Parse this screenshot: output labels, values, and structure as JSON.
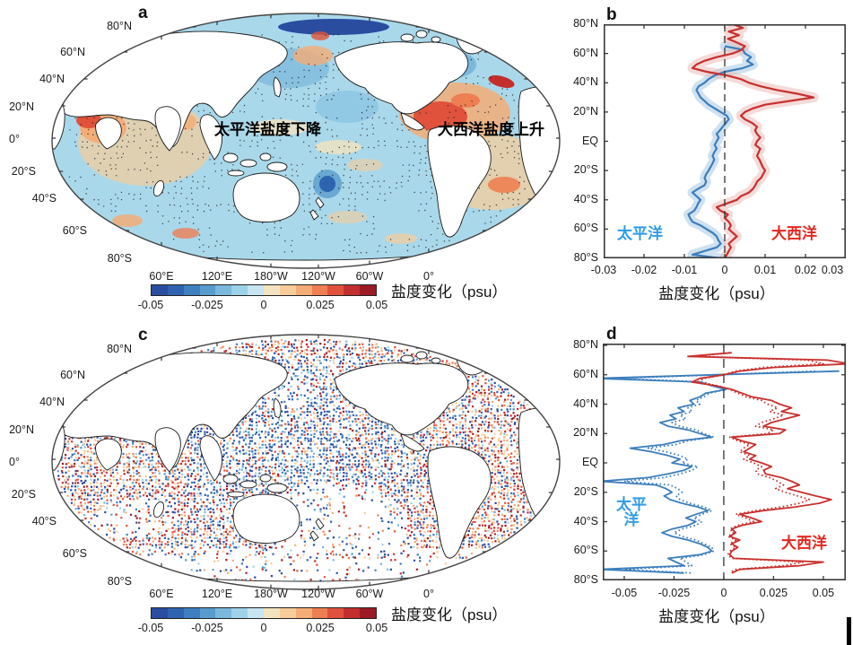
{
  "colors": {
    "line_blue": "#3c7ebc",
    "line_red": "#c8302e",
    "band_blue": "#9fc3e2",
    "band_red": "#eab5b1",
    "label_blue": "#2f9ce8",
    "label_red": "#e52620",
    "map_ocean": "#a9d8ea",
    "axis": "#3a3a3a",
    "stipple": "#1c1c1c",
    "palette": [
      "#2a4da0",
      "#2f63b0",
      "#3f7fc0",
      "#589ccd",
      "#7ab8dc",
      "#9ed2e8",
      "#c6e5f0",
      "#f2e4c0",
      "#f6cd9a",
      "#f4ad77",
      "#ee7f52",
      "#e0523c",
      "#c22f2e",
      "#9c1b24"
    ]
  },
  "panels": {
    "a": {
      "label": "a",
      "annotation_pacific": "太平洋盐度下降",
      "annotation_atlantic": "大西洋盐度上升",
      "lat_labels": [
        "80°N",
        "60°N",
        "40°N",
        "20°N",
        "0°",
        "20°S",
        "40°S",
        "60°S",
        "80°S"
      ],
      "lon_labels": [
        "60°E",
        "120°E",
        "180°W",
        "120°W",
        "60°W",
        "0°"
      ],
      "colorbar": {
        "tick_labels": [
          "-0.05",
          "-0.025",
          "0",
          "0.025",
          "0.05"
        ],
        "title": "盐度变化（psu）"
      }
    },
    "b": {
      "label": "b",
      "x_title": "盐度变化（psu）",
      "lat_labels": [
        "80°N",
        "60°N",
        "40°N",
        "20°N",
        "EQ",
        "20°S",
        "40°S",
        "60°S",
        "80°S"
      ],
      "x_tick_labels": [
        "-0.03",
        "-0.02",
        "-0.01",
        "0",
        "0.01",
        "0.02",
        "0.03"
      ],
      "pacific_label": "太平洋",
      "atlantic_label": "大西洋"
    },
    "c": {
      "label": "c",
      "lat_labels": [
        "80°N",
        "60°N",
        "40°N",
        "20°N",
        "0°",
        "20°S",
        "40°S",
        "60°S",
        "80°S"
      ],
      "lon_labels": [
        "60°E",
        "120°E",
        "180°W",
        "120°W",
        "60°W",
        "0°"
      ],
      "colorbar": {
        "tick_labels": [
          "-0.05",
          "-0.025",
          "0",
          "0.025",
          "0.05"
        ],
        "title": "盐度变化（psu）"
      }
    },
    "d": {
      "label": "d",
      "x_title": "盐度变化（psu）",
      "lat_labels": [
        "80°N",
        "60°N",
        "40°N",
        "20°N",
        "EQ",
        "20°S",
        "40°S",
        "60°S",
        "80°S"
      ],
      "x_tick_labels": [
        "-0.05",
        "-0.025",
        "0",
        "0.025",
        "0.05"
      ],
      "pacific_label_top": "太平",
      "pacific_label_bottom": "洋",
      "atlantic_label": "大西洋"
    }
  },
  "chart_data": [
    {
      "id": "b",
      "type": "line",
      "orientation": "value-x_latitude-y",
      "xlabel": "盐度变化（psu）",
      "xlim": [
        -0.03,
        0.03
      ],
      "ylim_lat": [
        -80,
        80
      ],
      "x_ticks": [
        -0.03,
        -0.02,
        -0.01,
        0,
        0.01,
        0.02,
        0.03
      ],
      "zero_line": "dashed",
      "lats": [
        80,
        77.5,
        75,
        72.5,
        70,
        67.5,
        65,
        62.5,
        60,
        57.5,
        55,
        52.5,
        50,
        47.5,
        45,
        42.5,
        40,
        37.5,
        35,
        32.5,
        30,
        27.5,
        25,
        22.5,
        20,
        17.5,
        15,
        12.5,
        10,
        7.5,
        5,
        2.5,
        0,
        -2.5,
        -5,
        -7.5,
        -10,
        -12.5,
        -15,
        -17.5,
        -20,
        -22.5,
        -25,
        -27.5,
        -30,
        -32.5,
        -35,
        -37.5,
        -40,
        -42.5,
        -45,
        -47.5,
        -50,
        -52.5,
        -55,
        -57.5,
        -60,
        -62.5,
        -65,
        -67.5,
        -70,
        -72.5,
        -75,
        -77.5,
        -80
      ],
      "series": [
        {
          "name": "太平洋",
          "color": "line_blue",
          "band_color": "band_blue",
          "style": "solid",
          "band": true,
          "values": [
            null,
            null,
            null,
            null,
            null,
            null,
            0,
            0.0045,
            0.005,
            0.0065,
            0.0055,
            0.007,
            0.0045,
            0,
            -0.0025,
            -0.004,
            -0.005,
            -0.0065,
            -0.007,
            -0.0065,
            -0.006,
            -0.005,
            -0.004,
            -0.0025,
            -0.001,
            0.0005,
            0.001,
            0.0003,
            -0.0005,
            -0.0012,
            -0.002,
            -0.0015,
            -0.002,
            -0.0025,
            -0.002,
            -0.0026,
            -0.003,
            -0.0026,
            -0.003,
            -0.0035,
            -0.004,
            -0.0046,
            -0.005,
            -0.0046,
            -0.005,
            -0.0066,
            -0.008,
            -0.007,
            -0.006,
            -0.0066,
            -0.007,
            -0.0076,
            -0.009,
            -0.0086,
            -0.008,
            -0.006,
            -0.0045,
            -0.003,
            -0.002,
            -0.0016,
            -0.001,
            -0.002,
            -0.005,
            -0.008,
            -0.001
          ]
        },
        {
          "name": "大西洋",
          "color": "line_red",
          "band_color": "band_red",
          "style": "solid",
          "band": true,
          "values": [
            0.002,
            0.0045,
            0.001,
            0.0035,
            0.0008,
            0.003,
            0.005,
            0.0042,
            0.002,
            -0.002,
            -0.005,
            -0.007,
            -0.008,
            -0.0045,
            0.0005,
            0.004,
            0.006,
            0.009,
            0.013,
            0.018,
            0.022,
            0.016,
            0.01,
            0.007,
            0.005,
            0.004,
            0.005,
            0.0068,
            0.008,
            0.0075,
            0.008,
            0.0088,
            0.008,
            0.0076,
            0.0088,
            0.0084,
            0.008,
            0.0086,
            0.009,
            0.0094,
            0.01,
            0.0095,
            0.009,
            0.008,
            0.0076,
            0.007,
            0.006,
            0.004,
            0.003,
            0.0005,
            -0.002,
            -0.001,
            0.0008,
            0,
            0.001,
            0.0015,
            0.001,
            0.002,
            0.003,
            0.002,
            0.001,
            0.0015,
            0.001,
            0.0005,
            0
          ]
        }
      ]
    },
    {
      "id": "d",
      "type": "line",
      "orientation": "value-x_latitude-y",
      "xlabel": "盐度变化（psu）",
      "xlim": [
        -0.0608,
        0.0613
      ],
      "ylim_lat": [
        -80,
        80
      ],
      "x_ticks": [
        -0.05,
        -0.025,
        0,
        0.025,
        0.05
      ],
      "zero_line": "dashed",
      "lats": [
        75,
        72.5,
        70,
        67.5,
        65,
        62.5,
        60,
        57.5,
        55,
        52.5,
        50,
        47.5,
        45,
        42.5,
        40,
        37.5,
        35,
        32.5,
        30,
        27.5,
        25,
        22.5,
        20,
        17.5,
        15,
        12.5,
        10,
        7.5,
        5,
        2.5,
        0,
        -2.5,
        -5,
        -7.5,
        -10,
        -12.5,
        -15,
        -17.5,
        -20,
        -22.5,
        -25,
        -27.5,
        -30,
        -32.5,
        -35,
        -37.5,
        -40,
        -42.5,
        -45,
        -47.5,
        -50,
        -52.5,
        -55,
        -57.5,
        -60,
        -62.5,
        -65,
        -67.5,
        -70,
        -72.5,
        -75
      ],
      "series": [
        {
          "name": "太平洋 solid",
          "color": "line_blue",
          "style": "solid",
          "band": false,
          "values": [
            null,
            null,
            null,
            null,
            null,
            0.058,
            -0.005,
            -0.064,
            -0.012,
            -0.006,
            0.001,
            -0.009,
            -0.012,
            -0.017,
            -0.015,
            -0.023,
            -0.02,
            -0.027,
            -0.024,
            -0.032,
            -0.028,
            -0.018,
            -0.012,
            -0.006,
            -0.022,
            -0.03,
            -0.047,
            -0.036,
            -0.028,
            -0.022,
            -0.026,
            -0.016,
            -0.02,
            -0.028,
            -0.038,
            -0.062,
            -0.034,
            -0.029,
            -0.026,
            -0.03,
            -0.027,
            -0.021,
            -0.013,
            -0.008,
            -0.014,
            -0.019,
            -0.014,
            -0.018,
            -0.026,
            -0.031,
            -0.026,
            -0.018,
            -0.012,
            -0.008,
            -0.006,
            -0.012,
            -0.028,
            -0.024,
            -0.02,
            -0.062,
            -0.02
          ]
        },
        {
          "name": "太平洋 dotted",
          "color": "line_blue",
          "style": "dotted",
          "band": false,
          "values": [
            null,
            null,
            null,
            null,
            null,
            0.046,
            -0.004,
            -0.051,
            -0.01,
            -0.005,
            0.001,
            -0.007,
            -0.01,
            -0.014,
            -0.012,
            -0.018,
            -0.016,
            -0.022,
            -0.019,
            -0.026,
            -0.022,
            -0.014,
            -0.01,
            -0.005,
            -0.018,
            -0.024,
            -0.038,
            -0.029,
            -0.022,
            -0.018,
            -0.021,
            -0.013,
            -0.016,
            -0.022,
            -0.03,
            -0.05,
            -0.027,
            -0.023,
            -0.021,
            -0.024,
            -0.022,
            -0.017,
            -0.01,
            -0.006,
            -0.011,
            -0.015,
            -0.011,
            -0.014,
            -0.021,
            -0.025,
            -0.021,
            -0.014,
            -0.01,
            -0.006,
            -0.005,
            -0.01,
            -0.022,
            -0.019,
            -0.016,
            -0.05,
            -0.016
          ]
        },
        {
          "name": "大西洋 solid",
          "color": "line_red",
          "style": "solid",
          "band": false,
          "values": [
            0.004,
            -0.018,
            0.052,
            0.063,
            0.025,
            0.008,
            0,
            -0.012,
            -0.016,
            -0.004,
            0.004,
            0.009,
            0.014,
            0.024,
            0.028,
            0.034,
            0.029,
            0.038,
            0.031,
            0.024,
            0.02,
            0.031,
            0.028,
            0.004,
            0.009,
            0.016,
            0.013,
            0.01,
            0.016,
            0.013,
            0.019,
            0.024,
            0.02,
            0.021,
            0.029,
            0.034,
            0.038,
            0.032,
            0.039,
            0.046,
            0.054,
            0.048,
            0.036,
            0.02,
            0.008,
            0.014,
            0.019,
            0.009,
            0.004,
            0.006,
            0.003,
            0.008,
            0.004,
            0.007,
            0.004,
            0.003,
            0.005,
            0.05,
            0.038,
            0.008,
            0.004
          ]
        },
        {
          "name": "大西洋 dotted",
          "color": "line_red",
          "style": "dotted",
          "band": false,
          "values": [
            0.003,
            -0.014,
            0.042,
            0.05,
            0.02,
            0.006,
            0,
            -0.01,
            -0.013,
            -0.003,
            0.003,
            0.007,
            0.011,
            0.019,
            0.022,
            0.027,
            0.023,
            0.03,
            0.025,
            0.019,
            0.016,
            0.025,
            0.022,
            0.003,
            0.007,
            0.013,
            0.01,
            0.008,
            0.013,
            0.01,
            0.015,
            0.019,
            0.016,
            0.017,
            0.023,
            0.027,
            0.03,
            0.026,
            0.031,
            0.037,
            0.043,
            0.038,
            0.029,
            0.016,
            0.006,
            0.011,
            0.015,
            0.007,
            0.003,
            0.005,
            0.002,
            0.006,
            0.003,
            0.006,
            0.003,
            0.002,
            0.004,
            0.04,
            0.03,
            0.006,
            0.003
          ]
        }
      ]
    }
  ]
}
